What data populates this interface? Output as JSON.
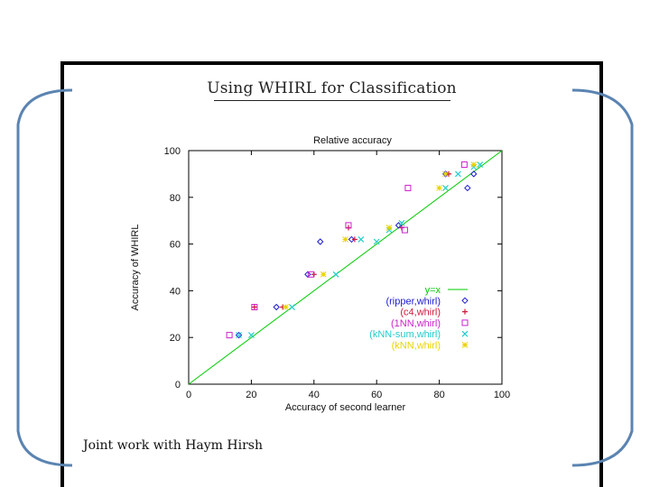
{
  "slide": {
    "title": "Using WHIRL for Classification",
    "footer": "Joint work with Haym Hirsh"
  },
  "colors": {
    "brace": "#5b84b1",
    "frame": "#000000"
  },
  "chart_data": {
    "type": "scatter",
    "title": "Relative accuracy",
    "xlabel": "Accuracy of second learner",
    "ylabel": "Accuracy of WHIRL",
    "xlim": [
      0,
      100
    ],
    "ylim": [
      0,
      100
    ],
    "x_ticks": [
      "0",
      "20",
      "40",
      "60",
      "80",
      "100"
    ],
    "y_ticks": [
      "0",
      "20",
      "40",
      "60",
      "80",
      "100"
    ],
    "grid": false,
    "legend_position": "bottom-right inside",
    "series": [
      {
        "name": "y=x",
        "kind": "line",
        "color": "#00cc00",
        "points": [
          [
            0,
            0
          ],
          [
            100,
            100
          ]
        ]
      },
      {
        "name": "(ripper,whirl)",
        "kind": "scatter",
        "marker": "diamond",
        "color": "#1a1acc",
        "points": [
          [
            16,
            21
          ],
          [
            28,
            33
          ],
          [
            38,
            47
          ],
          [
            42,
            61
          ],
          [
            52,
            62
          ],
          [
            67,
            68
          ],
          [
            82,
            90
          ],
          [
            89,
            84
          ],
          [
            91,
            90
          ]
        ]
      },
      {
        "name": "(c4,whirl)",
        "kind": "scatter",
        "marker": "plus",
        "color": "#cc1a3a",
        "points": [
          [
            21,
            33
          ],
          [
            30,
            33
          ],
          [
            40,
            47
          ],
          [
            51,
            67
          ],
          [
            53,
            62
          ],
          [
            68,
            67
          ],
          [
            83,
            90
          ]
        ]
      },
      {
        "name": "(1NN,whirl)",
        "kind": "scatter",
        "marker": "square",
        "color": "#cc22cc",
        "points": [
          [
            13,
            21
          ],
          [
            21,
            33
          ],
          [
            39,
            47
          ],
          [
            51,
            68
          ],
          [
            70,
            84
          ],
          [
            69,
            66
          ],
          [
            88,
            94
          ]
        ]
      },
      {
        "name": "(kNN-sum,whirl)",
        "kind": "scatter",
        "marker": "x",
        "color": "#22cccc",
        "points": [
          [
            16,
            21
          ],
          [
            20,
            21
          ],
          [
            33,
            33
          ],
          [
            47,
            47
          ],
          [
            55,
            62
          ],
          [
            60,
            61
          ],
          [
            64,
            66
          ],
          [
            68,
            69
          ],
          [
            82,
            84
          ],
          [
            86,
            90
          ],
          [
            91,
            93
          ],
          [
            93,
            94
          ]
        ]
      },
      {
        "name": "(kNN,whirl)",
        "kind": "scatter",
        "marker": "star",
        "color": "#e8d400",
        "points": [
          [
            31,
            33
          ],
          [
            43,
            47
          ],
          [
            50,
            62
          ],
          [
            64,
            67
          ],
          [
            80,
            84
          ],
          [
            82,
            90
          ],
          [
            91,
            94
          ]
        ]
      }
    ]
  }
}
